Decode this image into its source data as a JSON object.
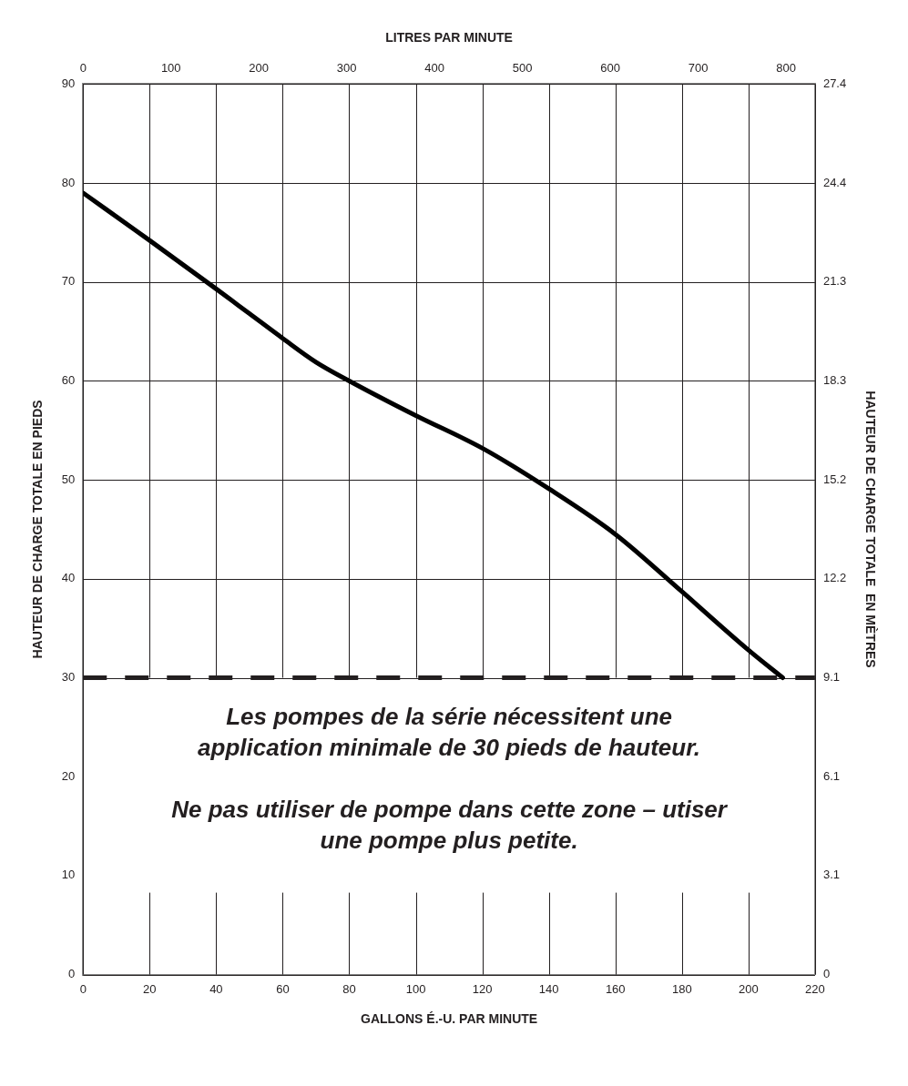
{
  "chart_data": {
    "type": "line",
    "xlabel": "GALLONS É.-U. PAR MINUTE",
    "x2label": "LITRES PAR MINUTE",
    "ylabel": "HAUTEUR DE CHARGE TOTALE EN PIEDS",
    "y2label": "HAUTEUR DE CHARGE TOTALE  EN MÈTRES",
    "x": [
      0,
      20,
      40,
      50,
      60,
      70,
      80,
      100,
      120,
      140,
      160,
      180,
      200,
      210.3
    ],
    "series": [
      {
        "color": "#000000",
        "values": [
          79,
          74.2,
          69.3,
          66.8,
          64.3,
          61.9,
          60,
          56.5,
          53.2,
          49.1,
          44.5,
          38.7,
          32.8,
          30
        ]
      }
    ],
    "xlim": [
      0,
      220
    ],
    "xticks": [
      0,
      20,
      40,
      60,
      80,
      100,
      120,
      140,
      160,
      180,
      200,
      220
    ],
    "x2lim": [
      0,
      833
    ],
    "x2ticks": [
      0,
      100,
      200,
      300,
      400,
      500,
      600,
      700,
      800
    ],
    "ylim": [
      0,
      90
    ],
    "yticks": [
      0,
      10,
      20,
      30,
      40,
      50,
      60,
      70,
      80,
      90
    ],
    "y2lim": [
      0,
      27.43
    ],
    "y2ticks": [
      0,
      {
        "value": 3.05,
        "label": "3.1"
      },
      {
        "value": 6.1,
        "label": "6.1"
      },
      {
        "value": 9.14,
        "label": "9.1"
      },
      {
        "value": 12.19,
        "label": "12.2"
      },
      {
        "value": 15.24,
        "label": "15.2"
      },
      {
        "value": 18.29,
        "label": "18.3"
      },
      {
        "value": 21.34,
        "label": "21.3"
      },
      {
        "value": 24.38,
        "label": "24.4"
      },
      {
        "value": 27.43,
        "label": "27.4"
      }
    ],
    "ref_lines": [
      {
        "axis": "y",
        "value": 30,
        "color": "#231f20",
        "line_style": "dashed"
      }
    ],
    "annotations": [
      "Les pompes de la série nécessitent une application minimale de 30 pieds de hauteur.",
      "Ne pas utiliser de pompe dans cette zone – utiser une pompe plus petite."
    ],
    "grid": true,
    "marker": "none",
    "line_style": "solid",
    "legend": false
  }
}
